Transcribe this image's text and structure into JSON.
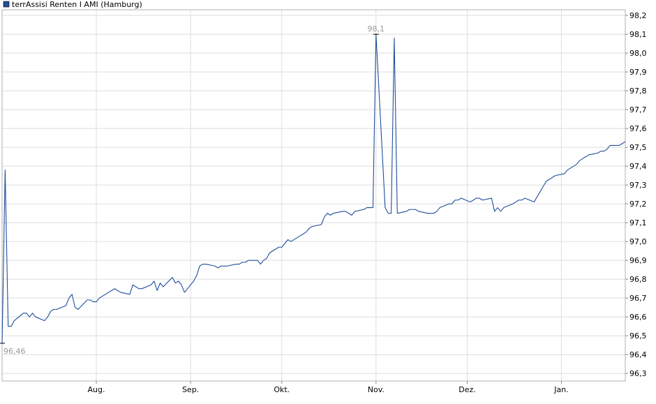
{
  "chart_data": {
    "type": "line",
    "title": "",
    "legend": {
      "label": "terrAssisi Renten I AMI (Hamburg)",
      "placement": "top-left",
      "color": "#1f4e9c"
    },
    "xlabel": "",
    "ylabel": "",
    "grid": true,
    "y_axis_side": "right",
    "ylim": [
      96.26,
      98.23
    ],
    "y_ticks": [
      96.3,
      96.4,
      96.5,
      96.6,
      96.7,
      96.8,
      96.9,
      97.0,
      97.1,
      97.2,
      97.3,
      97.4,
      97.5,
      97.6,
      97.7,
      97.8,
      97.9,
      98.0,
      98.1,
      98.2
    ],
    "y_tick_labels": [
      "96,3",
      "96,4",
      "96,5",
      "96,6",
      "96,7",
      "96,8",
      "96,9",
      "97,0",
      "97,1",
      "97,2",
      "97,3",
      "97,4",
      "97,5",
      "97,6",
      "97,7",
      "97,8",
      "97,9",
      "98,0",
      "98,1",
      "98,2"
    ],
    "xlim": [
      "2024-07-01",
      "2025-01-22"
    ],
    "x_ticks": [
      "2024-08-01",
      "2024-09-01",
      "2024-10-01",
      "2024-11-01",
      "2024-12-01",
      "2025-01-01"
    ],
    "x_tick_labels": [
      "Aug.",
      "Sep.",
      "Okt.",
      "Nov.",
      "Dez.",
      "Jan."
    ],
    "series": [
      {
        "name": "terrAssisi Renten I AMI (Hamburg)",
        "color": "#1f4e9c",
        "x": [
          "2024-07-01",
          "2024-07-02",
          "2024-07-03",
          "2024-07-04",
          "2024-07-05",
          "2024-07-08",
          "2024-07-09",
          "2024-07-10",
          "2024-07-11",
          "2024-07-12",
          "2024-07-15",
          "2024-07-16",
          "2024-07-17",
          "2024-07-18",
          "2024-07-19",
          "2024-07-22",
          "2024-07-23",
          "2024-07-24",
          "2024-07-25",
          "2024-07-26",
          "2024-07-29",
          "2024-07-30",
          "2024-07-31",
          "2024-08-01",
          "2024-08-02",
          "2024-08-05",
          "2024-08-06",
          "2024-08-07",
          "2024-08-08",
          "2024-08-09",
          "2024-08-12",
          "2024-08-13",
          "2024-08-14",
          "2024-08-15",
          "2024-08-16",
          "2024-08-19",
          "2024-08-20",
          "2024-08-21",
          "2024-08-22",
          "2024-08-23",
          "2024-08-26",
          "2024-08-27",
          "2024-08-28",
          "2024-08-29",
          "2024-08-30",
          "2024-09-02",
          "2024-09-03",
          "2024-09-04",
          "2024-09-05",
          "2024-09-06",
          "2024-09-09",
          "2024-09-10",
          "2024-09-11",
          "2024-09-12",
          "2024-09-13",
          "2024-09-16",
          "2024-09-17",
          "2024-09-18",
          "2024-09-19",
          "2024-09-20",
          "2024-09-23",
          "2024-09-24",
          "2024-09-25",
          "2024-09-26",
          "2024-09-27",
          "2024-09-30",
          "2024-10-01",
          "2024-10-02",
          "2024-10-03",
          "2024-10-04",
          "2024-10-07",
          "2024-10-08",
          "2024-10-09",
          "2024-10-10",
          "2024-10-11",
          "2024-10-14",
          "2024-10-15",
          "2024-10-16",
          "2024-10-17",
          "2024-10-18",
          "2024-10-21",
          "2024-10-22",
          "2024-10-23",
          "2024-10-24",
          "2024-10-25",
          "2024-10-28",
          "2024-10-29",
          "2024-10-30",
          "2024-10-31",
          "2024-11-01",
          "2024-11-04",
          "2024-11-05",
          "2024-11-06",
          "2024-11-07",
          "2024-11-08",
          "2024-11-11",
          "2024-11-12",
          "2024-11-13",
          "2024-11-14",
          "2024-11-15",
          "2024-11-18",
          "2024-11-19",
          "2024-11-20",
          "2024-11-21",
          "2024-11-22",
          "2024-11-25",
          "2024-11-26",
          "2024-11-27",
          "2024-11-28",
          "2024-11-29",
          "2024-12-02",
          "2024-12-03",
          "2024-12-04",
          "2024-12-05",
          "2024-12-06",
          "2024-12-09",
          "2024-12-10",
          "2024-12-11",
          "2024-12-12",
          "2024-12-13",
          "2024-12-16",
          "2024-12-17",
          "2024-12-18",
          "2024-12-19",
          "2024-12-20",
          "2024-12-23",
          "2024-12-27",
          "2024-12-30",
          "2025-01-02",
          "2025-01-03",
          "2025-01-06",
          "2025-01-07",
          "2025-01-08",
          "2025-01-09",
          "2025-01-10",
          "2025-01-13",
          "2025-01-14",
          "2025-01-15",
          "2025-01-16",
          "2025-01-17",
          "2025-01-20",
          "2025-01-21",
          "2025-01-22"
        ],
        "values": [
          96.46,
          97.38,
          96.55,
          96.55,
          96.58,
          96.62,
          96.62,
          96.6,
          96.62,
          96.6,
          96.58,
          96.6,
          96.63,
          96.64,
          96.64,
          96.66,
          96.7,
          96.72,
          96.65,
          96.64,
          96.69,
          96.69,
          96.68,
          96.68,
          96.7,
          96.73,
          96.74,
          96.75,
          96.74,
          96.73,
          96.72,
          96.77,
          96.76,
          96.75,
          96.75,
          96.77,
          96.79,
          96.74,
          96.78,
          96.76,
          96.81,
          96.78,
          96.79,
          96.77,
          96.73,
          96.79,
          96.82,
          96.87,
          96.88,
          96.88,
          96.87,
          96.86,
          96.87,
          96.87,
          96.87,
          96.88,
          96.88,
          96.89,
          96.89,
          96.9,
          96.9,
          96.88,
          96.9,
          96.91,
          96.94,
          96.97,
          96.97,
          96.99,
          97.01,
          97.0,
          97.03,
          97.04,
          97.05,
          97.07,
          97.08,
          97.09,
          97.13,
          97.15,
          97.14,
          97.15,
          97.16,
          97.16,
          97.15,
          97.14,
          97.16,
          97.17,
          97.18,
          97.18,
          97.18,
          98.1,
          97.18,
          97.15,
          97.15,
          98.08,
          97.15,
          97.16,
          97.17,
          97.17,
          97.17,
          97.16,
          97.15,
          97.15,
          97.15,
          97.16,
          97.18,
          97.2,
          97.2,
          97.22,
          97.22,
          97.23,
          97.21,
          97.22,
          97.23,
          97.23,
          97.22,
          97.23,
          97.16,
          97.18,
          97.16,
          97.18,
          97.2,
          97.21,
          97.22,
          97.22,
          97.23,
          97.21,
          97.32,
          97.35,
          97.36,
          97.38,
          97.41,
          97.43,
          97.44,
          97.45,
          97.46,
          97.47,
          97.48,
          97.48,
          97.49,
          97.51,
          97.51,
          97.52,
          97.53
        ],
        "annotations": [
          {
            "x": "2024-07-01",
            "value": 96.46,
            "label": "96,46"
          },
          {
            "x": "2024-11-01",
            "value": 98.1,
            "label": "98,1"
          }
        ]
      }
    ]
  }
}
